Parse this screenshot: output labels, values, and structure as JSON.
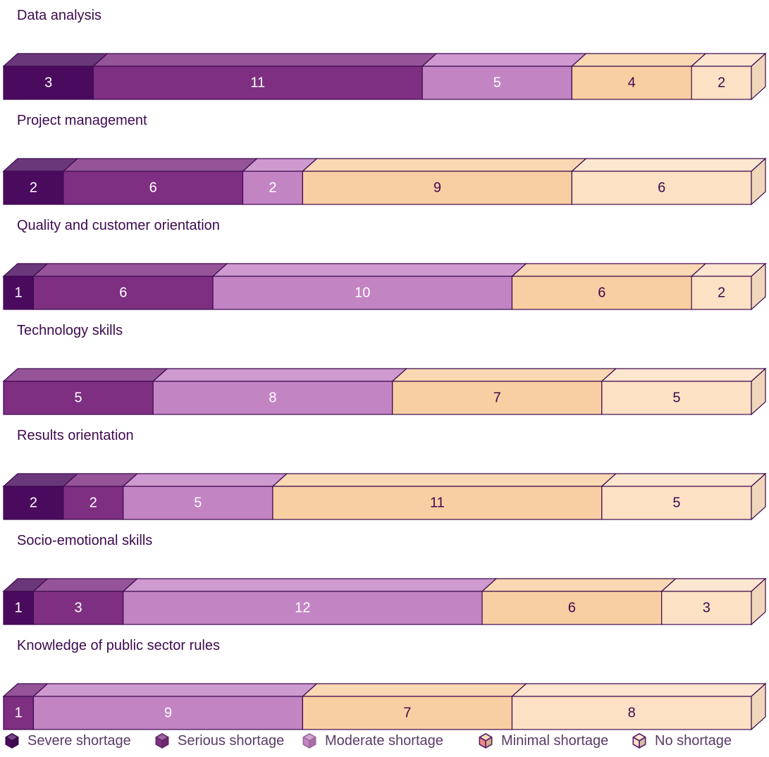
{
  "chart_data": {
    "type": "bar",
    "orientation": "horizontal",
    "stacked": true,
    "categories": [
      "Data analysis",
      "Project management",
      "Quality and customer orientation",
      "Technology skills",
      "Results orientation",
      "Socio-emotional skills",
      "Knowledge of public sector rules"
    ],
    "series": [
      {
        "name": "Severe shortage",
        "values": [
          3,
          2,
          1,
          0,
          2,
          1,
          0
        ],
        "color": "#4a0b5e",
        "text_color": "#ffffff"
      },
      {
        "name": "Serious shortage",
        "values": [
          11,
          6,
          6,
          5,
          2,
          3,
          1
        ],
        "color": "#7e2f81",
        "text_color": "#ffffff"
      },
      {
        "name": "Moderate shortage",
        "values": [
          5,
          2,
          10,
          8,
          5,
          12,
          9
        ],
        "color": "#c384c4",
        "text_color": "#ffffff"
      },
      {
        "name": "Minimal shortage",
        "values": [
          4,
          9,
          6,
          7,
          11,
          6,
          7
        ],
        "color": "#f8cfa2",
        "text_color": "#3d0a4f"
      },
      {
        "name": "No shortage",
        "values": [
          2,
          6,
          2,
          5,
          5,
          3,
          8
        ],
        "color": "#fde1c4",
        "text_color": "#3d0a4f"
      }
    ],
    "legend_position": "bottom",
    "grid": false,
    "style": "3d-bars"
  }
}
